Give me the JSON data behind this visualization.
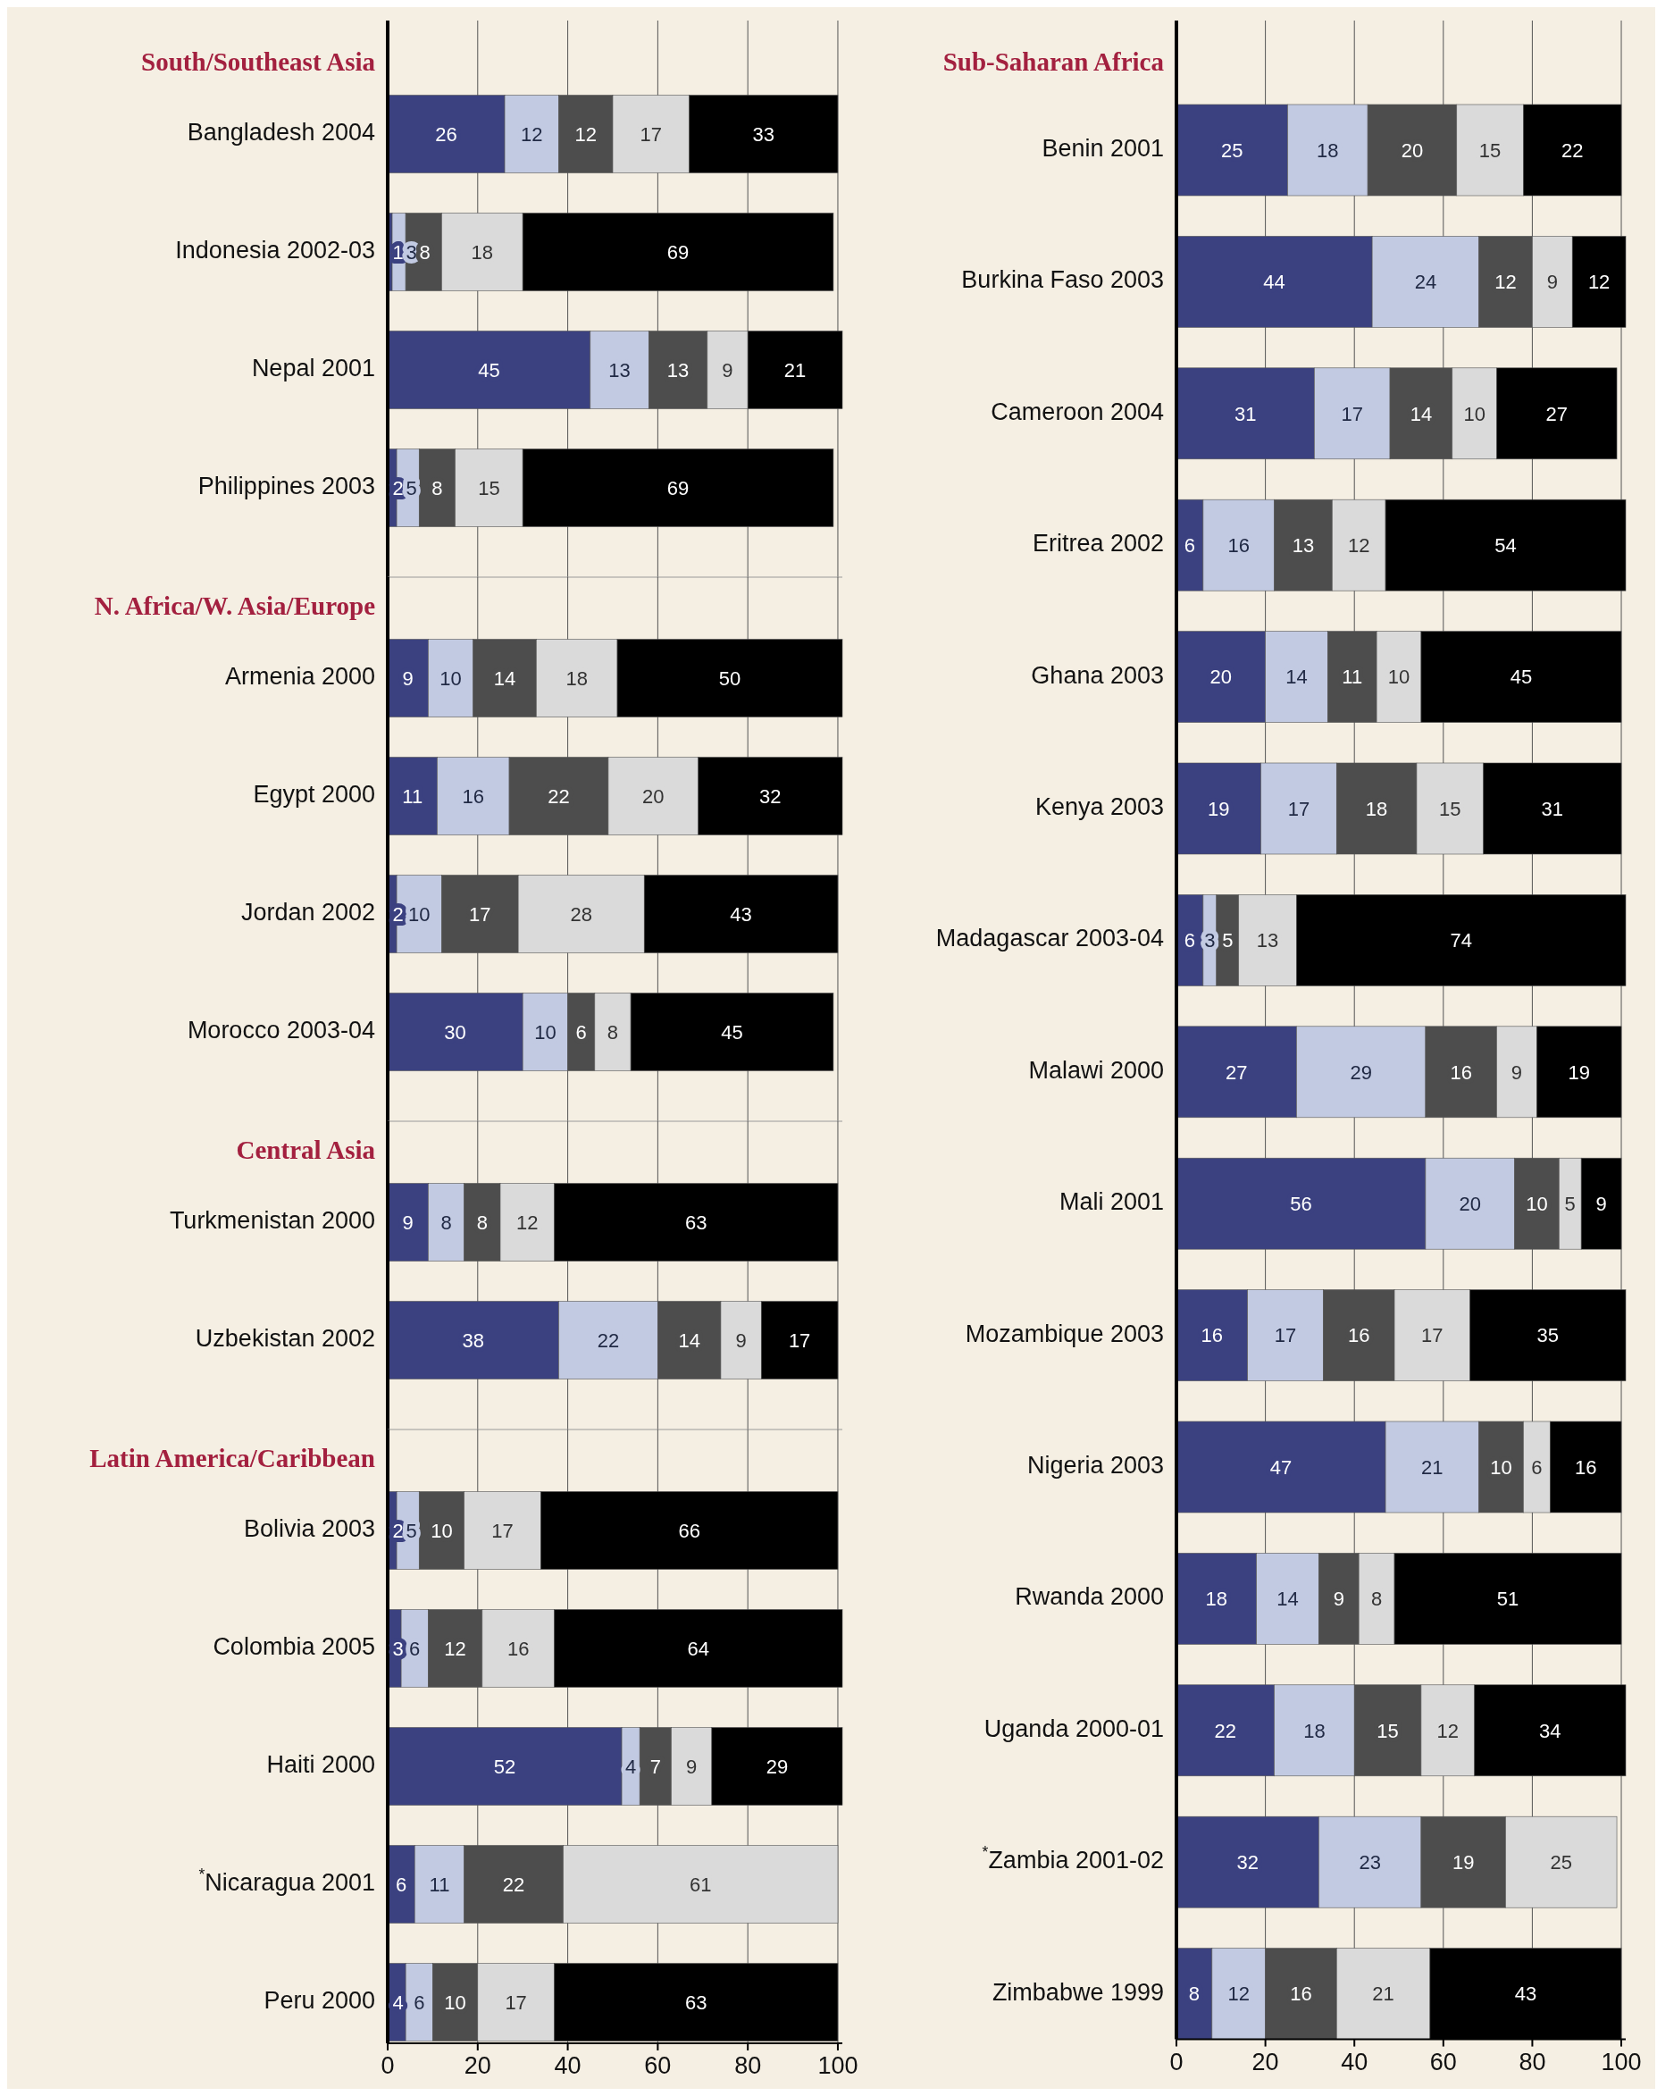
{
  "chart_data": [
    {
      "type": "bar",
      "orientation": "horizontal",
      "stacked": true,
      "title": "South/Southeast Asia",
      "categories": [
        "Bangladesh 2004",
        "Indonesia 2002-03",
        "Nepal 2001",
        "Philippines 2003"
      ],
      "series": [
        {
          "color": "#3b4180",
          "values": [
            26,
            1,
            45,
            2
          ]
        },
        {
          "color": "#c2cae2",
          "values": [
            12,
            3,
            13,
            5
          ]
        },
        {
          "color": "#4d4d4d",
          "values": [
            12,
            8,
            13,
            8
          ]
        },
        {
          "color": "#dadada",
          "values": [
            17,
            18,
            9,
            15
          ]
        },
        {
          "color": "#000000",
          "values": [
            33,
            69,
            21,
            69
          ]
        }
      ],
      "xlim": [
        0,
        101
      ],
      "xticks": [
        0,
        20,
        40,
        60,
        80,
        100
      ],
      "grid": "x",
      "data_labels": true,
      "tick_labels": "y"
    },
    {
      "type": "bar",
      "orientation": "horizontal",
      "stacked": true,
      "title": "N. Africa/W. Asia/Europe",
      "categories": [
        "Armenia 2000",
        "Egypt 2000",
        "Jordan 2002",
        "Morocco 2003-04"
      ],
      "series": [
        {
          "color": "#3b4180",
          "values": [
            9,
            11,
            2,
            30
          ]
        },
        {
          "color": "#c2cae2",
          "values": [
            10,
            16,
            10,
            10
          ]
        },
        {
          "color": "#4d4d4d",
          "values": [
            14,
            22,
            17,
            6
          ]
        },
        {
          "color": "#dadada",
          "values": [
            18,
            20,
            28,
            8
          ]
        },
        {
          "color": "#000000",
          "values": [
            50,
            32,
            43,
            45
          ]
        }
      ],
      "xlim": [
        0,
        101
      ],
      "xticks": [
        0,
        20,
        40,
        60,
        80,
        100
      ],
      "grid": "x",
      "data_labels": true,
      "tick_labels": "y"
    },
    {
      "type": "bar",
      "orientation": "horizontal",
      "stacked": true,
      "title": "Central Asia",
      "categories": [
        "Turkmenistan 2000",
        "Uzbekistan 2002"
      ],
      "series": [
        {
          "color": "#3b4180",
          "values": [
            9,
            38
          ]
        },
        {
          "color": "#c2cae2",
          "values": [
            8,
            22
          ]
        },
        {
          "color": "#4d4d4d",
          "values": [
            8,
            14
          ]
        },
        {
          "color": "#dadada",
          "values": [
            12,
            9
          ]
        },
        {
          "color": "#000000",
          "values": [
            63,
            17
          ]
        }
      ],
      "xlim": [
        0,
        101
      ],
      "xticks": [
        0,
        20,
        40,
        60,
        80,
        100
      ],
      "grid": "x",
      "data_labels": true,
      "tick_labels": "y"
    },
    {
      "type": "bar",
      "orientation": "horizontal",
      "stacked": true,
      "title": "Latin America/Caribbean",
      "categories": [
        "Bolivia 2003",
        "Colombia 2005",
        "Haiti 2000",
        "$^{*}$Nicaragua 2001",
        "Peru 2000"
      ],
      "series": [
        {
          "color": "#3b4180",
          "values": [
            2,
            3,
            52,
            6,
            4
          ]
        },
        {
          "color": "#c2cae2",
          "values": [
            5,
            6,
            4,
            11,
            6
          ]
        },
        {
          "color": "#4d4d4d",
          "values": [
            10,
            12,
            7,
            22,
            10
          ]
        },
        {
          "color": "#dadada",
          "values": [
            17,
            16,
            9,
            61,
            17
          ]
        },
        {
          "color": "#000000",
          "values": [
            66,
            64,
            29,
            null,
            63
          ]
        }
      ],
      "xlim": [
        0,
        101
      ],
      "xticks": [
        0,
        20,
        40,
        60,
        80,
        100
      ],
      "grid": "x",
      "data_labels": true
    },
    {
      "type": "bar",
      "orientation": "horizontal",
      "stacked": true,
      "title": "Sub-Saharan Africa",
      "categories": [
        "Benin 2001",
        "Burkina Faso 2003",
        "Cameroon 2004",
        "Eritrea 2002",
        "Ghana 2003",
        "Kenya 2003",
        "Madagascar 2003-04",
        "Malawi 2000",
        "Mali 2001",
        "Mozambique 2003",
        "Nigeria 2003",
        "Rwanda 2000",
        "Uganda 2000-01",
        "$^{*}$Zambia 2001-02",
        "Zimbabwe 1999"
      ],
      "series": [
        {
          "color": "#3b4180",
          "values": [
            25,
            44,
            31,
            6,
            20,
            19,
            6,
            27,
            56,
            16,
            47,
            18,
            22,
            32,
            8
          ]
        },
        {
          "color": "#c2cae2",
          "values": [
            18,
            24,
            17,
            16,
            14,
            17,
            3,
            29,
            20,
            17,
            21,
            14,
            18,
            23,
            12
          ]
        },
        {
          "color": "#4d4d4d",
          "values": [
            20,
            12,
            14,
            13,
            11,
            18,
            5,
            16,
            10,
            16,
            10,
            9,
            15,
            19,
            16
          ]
        },
        {
          "color": "#dadada",
          "values": [
            15,
            9,
            10,
            12,
            10,
            15,
            13,
            9,
            5,
            17,
            6,
            8,
            12,
            25,
            21
          ]
        },
        {
          "color": "#000000",
          "values": [
            22,
            12,
            27,
            54,
            45,
            31,
            74,
            19,
            9,
            35,
            16,
            51,
            34,
            null,
            43
          ]
        }
      ],
      "xlim": [
        0,
        101
      ],
      "xticks": [
        0,
        20,
        40,
        60,
        80,
        100
      ],
      "grid": "x",
      "data_labels": true
    }
  ]
}
